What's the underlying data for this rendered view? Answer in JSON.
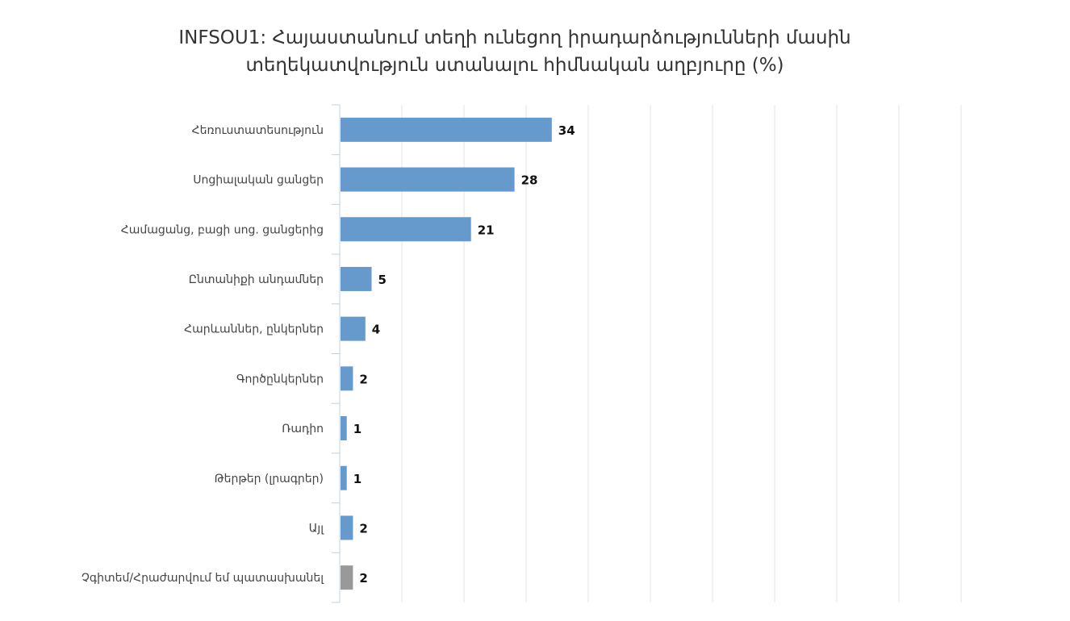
{
  "title_line1": "INFSOU1: Հայաստանում տեղի ունեցող իրադարձությունների մասին",
  "title_line2": "տեղեկատվություն ստանալու հիմնական աղբյուրը (%)",
  "colors": {
    "bar": "#6699cc",
    "bar_refused": "#999999",
    "grid": "#e6e6e6",
    "axis": "#c0d0e0"
  },
  "chart_data": {
    "type": "bar",
    "orientation": "horizontal",
    "title": "INFSOU1: Հայաստանում տեղի ունեցող իրադարձությունների մասին տեղեկատվություն ստանալու հիմնական աղբյուրը (%)",
    "categories": [
      "Հեռուստատեսություն",
      "Սոցիալական ցանցեր",
      "Համացանց, բացի սոց. ցանցերից",
      "Ընտանիքի անդամներ",
      "Հարևաններ, ընկերներ",
      "Գործընկերներ",
      "Ռադիո",
      "Թերթեր (լրագրեր)",
      "Այլ",
      "Չգիտեմ/Հրաժարվում եմ պատասխանել"
    ],
    "values": [
      34,
      28,
      21,
      5,
      4,
      2,
      1,
      1,
      2,
      2
    ],
    "xlim": [
      0,
      100
    ],
    "grid": true,
    "data_labels": true
  }
}
